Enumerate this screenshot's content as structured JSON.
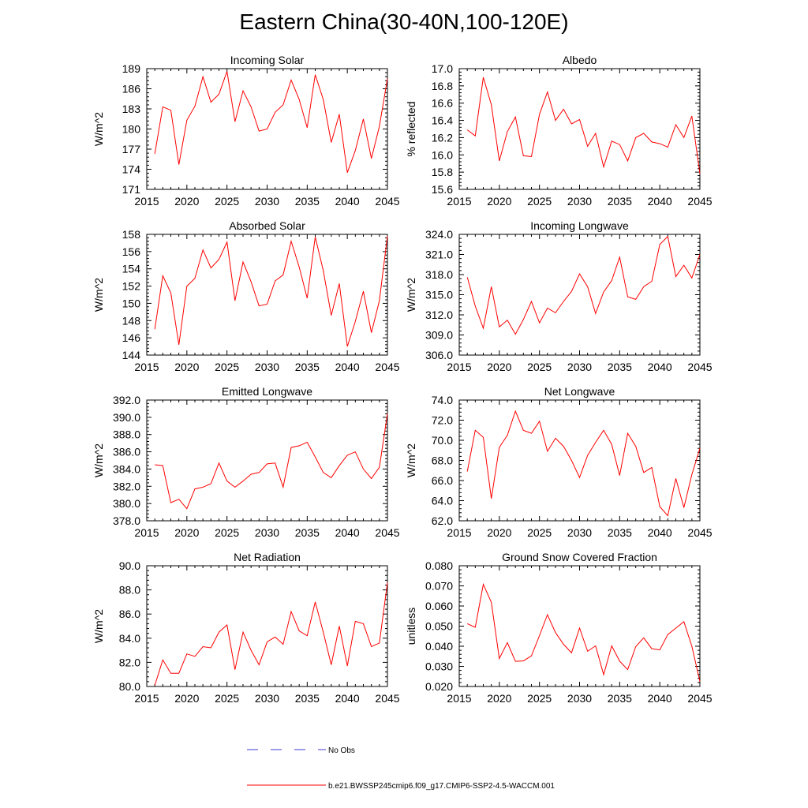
{
  "title": "Eastern China(30-40N,100-120E)",
  "colors": {
    "model_line": "#ff0000",
    "obs_line": "#3b3bd6",
    "axis": "#000000"
  },
  "legend": {
    "obs_label": "No Obs",
    "model_label": "b.e21.BWSSP245cmip6.f09_g17.CMIP6-SSP2-4.5-WACCM.001"
  },
  "chart_data": [
    {
      "type": "line",
      "title": "Incoming Solar",
      "xlabel": "",
      "ylabel": "W/m^2",
      "xlim": [
        2015,
        2045
      ],
      "ylim": [
        171,
        189
      ],
      "xticks": [
        2015,
        2020,
        2025,
        2030,
        2035,
        2040,
        2045
      ],
      "yticks": [
        "171",
        "174",
        "177",
        "180",
        "183",
        "186",
        "189"
      ],
      "x": [
        2016,
        2017,
        2018,
        2019,
        2020,
        2021,
        2022,
        2023,
        2024,
        2025,
        2026,
        2027,
        2028,
        2029,
        2030,
        2031,
        2032,
        2033,
        2034,
        2035,
        2036,
        2037,
        2038,
        2039,
        2040,
        2041,
        2042,
        2043,
        2044,
        2045
      ],
      "series": [
        {
          "name": "b.e21.BWSSP245cmip6.f09_g17.CMIP6-SSP2-4.5-WACCM.001",
          "values": [
            176.3,
            183.3,
            182.8,
            174.7,
            181.3,
            183.4,
            187.8,
            184.0,
            185.2,
            188.6,
            181.1,
            185.7,
            183.3,
            179.7,
            180.0,
            182.5,
            183.6,
            187.3,
            184.4,
            180.2,
            188.1,
            184.4,
            178.0,
            182.2,
            173.5,
            176.8,
            181.5,
            175.6,
            180.4,
            187.5
          ]
        }
      ]
    },
    {
      "type": "line",
      "title": "Albedo",
      "xlabel": "",
      "ylabel": "% reflected",
      "xlim": [
        2015,
        2045
      ],
      "ylim": [
        15.6,
        17.0
      ],
      "xticks": [
        2015,
        2020,
        2025,
        2030,
        2035,
        2040,
        2045
      ],
      "yticks": [
        "15.6",
        "15.8",
        "16.0",
        "16.2",
        "16.4",
        "16.6",
        "16.8",
        "17.0"
      ],
      "x": [
        2016,
        2017,
        2018,
        2019,
        2020,
        2021,
        2022,
        2023,
        2024,
        2025,
        2026,
        2027,
        2028,
        2029,
        2030,
        2031,
        2032,
        2033,
        2034,
        2035,
        2036,
        2037,
        2038,
        2039,
        2040,
        2041,
        2042,
        2043,
        2044,
        2045
      ],
      "series": [
        {
          "name": "b.e21.BWSSP245cmip6.f09_g17.CMIP6-SSP2-4.5-WACCM.001",
          "values": [
            16.29,
            16.22,
            16.9,
            16.58,
            15.93,
            16.27,
            16.44,
            15.99,
            15.98,
            16.47,
            16.73,
            16.4,
            16.53,
            16.36,
            16.41,
            16.1,
            16.25,
            15.86,
            16.16,
            16.12,
            15.93,
            16.2,
            16.25,
            16.15,
            16.13,
            16.09,
            16.35,
            16.2,
            16.45,
            15.78
          ]
        }
      ]
    },
    {
      "type": "line",
      "title": "Absorbed Solar",
      "xlabel": "",
      "ylabel": "W/m^2",
      "xlim": [
        2015,
        2045
      ],
      "ylim": [
        144,
        158
      ],
      "xticks": [
        2015,
        2020,
        2025,
        2030,
        2035,
        2040,
        2045
      ],
      "yticks": [
        "144",
        "146",
        "148",
        "150",
        "152",
        "154",
        "156",
        "158"
      ],
      "x": [
        2016,
        2017,
        2018,
        2019,
        2020,
        2021,
        2022,
        2023,
        2024,
        2025,
        2026,
        2027,
        2028,
        2029,
        2030,
        2031,
        2032,
        2033,
        2034,
        2035,
        2036,
        2037,
        2038,
        2039,
        2040,
        2041,
        2042,
        2043,
        2044,
        2045
      ],
      "series": [
        {
          "name": "b.e21.BWSSP245cmip6.f09_g17.CMIP6-SSP2-4.5-WACCM.001",
          "values": [
            147.0,
            153.2,
            151.2,
            145.2,
            152.0,
            152.9,
            156.2,
            154.1,
            155.1,
            157.1,
            150.3,
            154.8,
            152.5,
            149.7,
            149.9,
            152.6,
            153.3,
            157.2,
            154.2,
            150.6,
            157.7,
            153.8,
            148.6,
            152.3,
            145.0,
            147.9,
            151.4,
            146.6,
            150.3,
            157.8
          ]
        }
      ]
    },
    {
      "type": "line",
      "title": "Incoming Longwave",
      "xlabel": "",
      "ylabel": "W/m^2",
      "xlim": [
        2015,
        2045
      ],
      "ylim": [
        306.0,
        324.0
      ],
      "xticks": [
        2015,
        2020,
        2025,
        2030,
        2035,
        2040,
        2045
      ],
      "yticks": [
        "306.0",
        "309.0",
        "312.0",
        "315.0",
        "318.0",
        "321.0",
        "324.0"
      ],
      "x": [
        2016,
        2017,
        2018,
        2019,
        2020,
        2021,
        2022,
        2023,
        2024,
        2025,
        2026,
        2027,
        2028,
        2029,
        2030,
        2031,
        2032,
        2033,
        2034,
        2035,
        2036,
        2037,
        2038,
        2039,
        2040,
        2041,
        2042,
        2043,
        2044,
        2045
      ],
      "series": [
        {
          "name": "b.e21.BWSSP245cmip6.f09_g17.CMIP6-SSP2-4.5-WACCM.001",
          "values": [
            317.6,
            313.3,
            310.0,
            316.2,
            310.2,
            311.2,
            309.1,
            311.3,
            314.0,
            310.8,
            313.0,
            312.3,
            314.0,
            315.5,
            318.1,
            316.2,
            312.2,
            315.4,
            317.1,
            320.6,
            314.7,
            314.3,
            316.2,
            317.0,
            322.5,
            323.7,
            317.7,
            319.4,
            317.5,
            321.0
          ]
        }
      ]
    },
    {
      "type": "line",
      "title": "Emitted Longwave",
      "xlabel": "",
      "ylabel": "W/m^2",
      "xlim": [
        2015,
        2045
      ],
      "ylim": [
        378.0,
        392.0
      ],
      "xticks": [
        2015,
        2020,
        2025,
        2030,
        2035,
        2040,
        2045
      ],
      "yticks": [
        "378.0",
        "380.0",
        "382.0",
        "384.0",
        "386.0",
        "388.0",
        "390.0",
        "392.0"
      ],
      "x": [
        2016,
        2017,
        2018,
        2019,
        2020,
        2021,
        2022,
        2023,
        2024,
        2025,
        2026,
        2027,
        2028,
        2029,
        2030,
        2031,
        2032,
        2033,
        2034,
        2035,
        2036,
        2037,
        2038,
        2039,
        2040,
        2041,
        2042,
        2043,
        2044,
        2045
      ],
      "series": [
        {
          "name": "b.e21.BWSSP245cmip6.f09_g17.CMIP6-SSP2-4.5-WACCM.001",
          "values": [
            384.5,
            384.4,
            380.1,
            380.5,
            379.4,
            381.7,
            381.9,
            382.3,
            384.7,
            382.6,
            381.9,
            382.6,
            383.4,
            383.6,
            384.6,
            384.7,
            381.9,
            386.5,
            386.7,
            387.1,
            385.4,
            383.6,
            383.0,
            384.4,
            385.6,
            386.0,
            384.0,
            382.9,
            384.2,
            390.4
          ]
        }
      ]
    },
    {
      "type": "line",
      "title": "Net Longwave",
      "xlabel": "",
      "ylabel": "W/m^2",
      "xlim": [
        2015,
        2045
      ],
      "ylim": [
        62.0,
        74.0
      ],
      "xticks": [
        2015,
        2020,
        2025,
        2030,
        2035,
        2040,
        2045
      ],
      "yticks": [
        "62.0",
        "64.0",
        "66.0",
        "68.0",
        "70.0",
        "72.0",
        "74.0"
      ],
      "x": [
        2016,
        2017,
        2018,
        2019,
        2020,
        2021,
        2022,
        2023,
        2024,
        2025,
        2026,
        2027,
        2028,
        2029,
        2030,
        2031,
        2032,
        2033,
        2034,
        2035,
        2036,
        2037,
        2038,
        2039,
        2040,
        2041,
        2042,
        2043,
        2044,
        2045
      ],
      "series": [
        {
          "name": "b.e21.BWSSP245cmip6.f09_g17.CMIP6-SSP2-4.5-WACCM.001",
          "values": [
            66.9,
            71.0,
            70.3,
            64.2,
            69.3,
            70.5,
            72.9,
            71.0,
            70.7,
            71.9,
            68.9,
            70.2,
            69.4,
            68.0,
            66.3,
            68.5,
            69.8,
            71.0,
            69.6,
            66.5,
            70.7,
            69.4,
            66.8,
            67.3,
            63.4,
            62.5,
            66.2,
            63.3,
            66.6,
            69.2
          ]
        }
      ]
    },
    {
      "type": "line",
      "title": "Net Radiation",
      "xlabel": "",
      "ylabel": "W/m^2",
      "xlim": [
        2015,
        2045
      ],
      "ylim": [
        80.0,
        90.0
      ],
      "xticks": [
        2015,
        2020,
        2025,
        2030,
        2035,
        2040,
        2045
      ],
      "yticks": [
        "80.0",
        "82.0",
        "84.0",
        "86.0",
        "88.0",
        "90.0"
      ],
      "x": [
        2016,
        2017,
        2018,
        2019,
        2020,
        2021,
        2022,
        2023,
        2024,
        2025,
        2026,
        2027,
        2028,
        2029,
        2030,
        2031,
        2032,
        2033,
        2034,
        2035,
        2036,
        2037,
        2038,
        2039,
        2040,
        2041,
        2042,
        2043,
        2044,
        2045
      ],
      "series": [
        {
          "name": "b.e21.BWSSP245cmip6.f09_g17.CMIP6-SSP2-4.5-WACCM.001",
          "values": [
            80.1,
            82.2,
            81.1,
            81.1,
            82.7,
            82.5,
            83.3,
            83.2,
            84.5,
            85.1,
            81.4,
            84.5,
            83.0,
            81.8,
            83.7,
            84.1,
            83.5,
            86.2,
            84.6,
            84.2,
            87.0,
            84.5,
            81.8,
            85.0,
            81.7,
            85.4,
            85.2,
            83.3,
            83.6,
            88.6
          ]
        }
      ]
    },
    {
      "type": "line",
      "title": "Ground Snow Covered Fraction",
      "xlabel": "",
      "ylabel": "unitless",
      "xlim": [
        2015,
        2045
      ],
      "ylim": [
        0.02,
        0.08
      ],
      "xticks": [
        2015,
        2020,
        2025,
        2030,
        2035,
        2040,
        2045
      ],
      "yticks": [
        "0.020",
        "0.030",
        "0.040",
        "0.050",
        "0.060",
        "0.070",
        "0.080"
      ],
      "x": [
        2016,
        2017,
        2018,
        2019,
        2020,
        2021,
        2022,
        2023,
        2024,
        2025,
        2026,
        2027,
        2028,
        2029,
        2030,
        2031,
        2032,
        2033,
        2034,
        2035,
        2036,
        2037,
        2038,
        2039,
        2040,
        2041,
        2042,
        2043,
        2044,
        2045
      ],
      "series": [
        {
          "name": "b.e21.BWSSP245cmip6.f09_g17.CMIP6-SSP2-4.5-WACCM.001",
          "values": [
            0.0512,
            0.0494,
            0.0708,
            0.0618,
            0.0339,
            0.0418,
            0.0325,
            0.0327,
            0.0352,
            0.0453,
            0.0557,
            0.0468,
            0.041,
            0.0367,
            0.049,
            0.0375,
            0.0402,
            0.0259,
            0.0402,
            0.0326,
            0.0284,
            0.0398,
            0.0442,
            0.0388,
            0.0382,
            0.0458,
            0.049,
            0.0522,
            0.04,
            0.0225
          ]
        }
      ]
    }
  ]
}
